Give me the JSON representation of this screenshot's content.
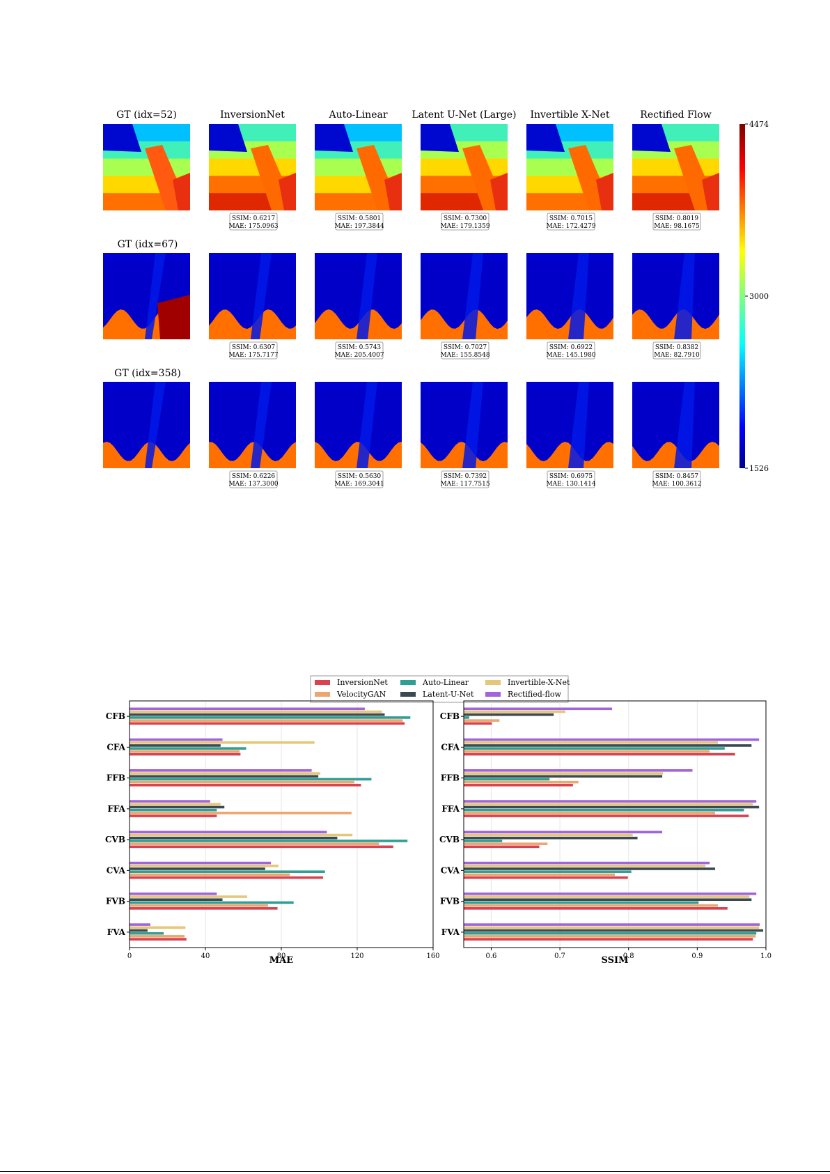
{
  "grid_figure": {
    "columns": [
      "InversionNet",
      "Auto-Linear",
      "Latent U-Net (Large)",
      "Invertible X-Net",
      "Rectified Flow"
    ],
    "rows": [
      {
        "gt_label": "GT (idx=52)",
        "metrics": [
          {
            "ssim": "SSIM: 0.6217",
            "mae": "MAE: 175.0963"
          },
          {
            "ssim": "SSIM: 0.5801",
            "mae": "MAE: 197.3844"
          },
          {
            "ssim": "SSIM: 0.7300",
            "mae": "MAE: 179.1359"
          },
          {
            "ssim": "SSIM: 0.7015",
            "mae": "MAE: 172.4279"
          },
          {
            "ssim": "SSIM: 0.8019",
            "mae": "MAE: 98.1675"
          }
        ]
      },
      {
        "gt_label": "GT (idx=67)",
        "metrics": [
          {
            "ssim": "SSIM: 0.6307",
            "mae": "MAE: 175.7177"
          },
          {
            "ssim": "SSIM: 0.5743",
            "mae": "MAE: 205.4007"
          },
          {
            "ssim": "SSIM: 0.7027",
            "mae": "MAE: 155.8548"
          },
          {
            "ssim": "SSIM: 0.6922",
            "mae": "MAE: 145.1980"
          },
          {
            "ssim": "SSIM: 0.8382",
            "mae": "MAE: 82.7910"
          }
        ]
      },
      {
        "gt_label": "GT (idx=358)",
        "metrics": [
          {
            "ssim": "SSIM: 0.6226",
            "mae": "MAE: 137.3000"
          },
          {
            "ssim": "SSIM: 0.5630",
            "mae": "MAE: 169.3041"
          },
          {
            "ssim": "SSIM: 0.7392",
            "mae": "MAE: 117.7515"
          },
          {
            "ssim": "SSIM: 0.6975",
            "mae": "MAE: 130.1414"
          },
          {
            "ssim": "SSIM: 0.8457",
            "mae": "MAE: 100.3612"
          }
        ]
      }
    ],
    "colorbar": {
      "max": "4474",
      "mid": "3000",
      "min": "1526"
    }
  },
  "chart_data": {
    "type": "bar",
    "orientation": "horizontal",
    "categories": [
      "CFB",
      "CFA",
      "FFB",
      "FFA",
      "CVB",
      "CVA",
      "FVB",
      "FVA"
    ],
    "legend": {
      "placement": "top-center",
      "entries": [
        "InversionNet",
        "Auto-Linear",
        "Invertible-X-Net",
        "VelocityGAN",
        "Latent-U-Net",
        "Rectified-flow"
      ]
    },
    "series_colors": {
      "InversionNet": "#d9424f",
      "VelocityGAN": "#eca66f",
      "Auto-Linear": "#2f9e95",
      "Latent-U-Net": "#3b4a52",
      "Invertible-X-Net": "#e6c67a",
      "Rectified-flow": "#a064dc"
    },
    "panels": [
      {
        "xlabel": "MAE",
        "xlim": [
          0,
          160
        ],
        "xticks": [
          "0",
          "40",
          "80",
          "120",
          "160"
        ],
        "grid": true,
        "series": [
          {
            "name": "InversionNet",
            "values": [
              145,
              58.5,
              122,
              46,
              139,
              102,
              78,
              30
            ]
          },
          {
            "name": "VelocityGAN",
            "values": [
              144,
              58,
              118.5,
              117,
              131.5,
              84.5,
              73,
              29
            ]
          },
          {
            "name": "Auto-Linear",
            "values": [
              148,
              61.5,
              127.5,
              46,
              146.5,
              103,
              86.5,
              18
            ]
          },
          {
            "name": "Latent-U-Net",
            "values": [
              134.5,
              48,
              99.5,
              50,
              109.5,
              71.5,
              49,
              9.5
            ]
          },
          {
            "name": "Invertible-X-Net",
            "values": [
              133,
              97.5,
              100.5,
              48,
              117.5,
              78.5,
              62,
              29.5
            ]
          },
          {
            "name": "Rectified-flow",
            "values": [
              124,
              49,
              96,
              42.5,
              104,
              74.5,
              46,
              11
            ]
          }
        ]
      },
      {
        "xlabel": "SSIM",
        "xlim": [
          0.56,
          1.0
        ],
        "xticks": [
          "0.6",
          "0.7",
          "0.8",
          "0.9",
          "1.0"
        ],
        "grid": true,
        "series": [
          {
            "name": "InversionNet",
            "values": [
              0.601,
              0.955,
              0.719,
              0.975,
              0.67,
              0.799,
              0.944,
              0.981
            ]
          },
          {
            "name": "VelocityGAN",
            "values": [
              0.612,
              0.918,
              0.727,
              0.926,
              0.682,
              0.78,
              0.93,
              0.985
            ]
          },
          {
            "name": "Auto-Linear",
            "values": [
              0.568,
              0.94,
              0.685,
              0.968,
              0.616,
              0.804,
              0.902,
              0.986
            ]
          },
          {
            "name": "Latent-U-Net",
            "values": [
              0.691,
              0.979,
              0.849,
              0.99,
              0.813,
              0.926,
              0.979,
              0.996
            ]
          },
          {
            "name": "Invertible-X-Net",
            "values": [
              0.708,
              0.93,
              0.85,
              0.981,
              0.806,
              0.912,
              0.976,
              0.99
            ]
          },
          {
            "name": "Rectified-flow",
            "values": [
              0.776,
              0.99,
              0.893,
              0.986,
              0.849,
              0.918,
              0.986,
              0.991
            ]
          }
        ]
      }
    ]
  }
}
